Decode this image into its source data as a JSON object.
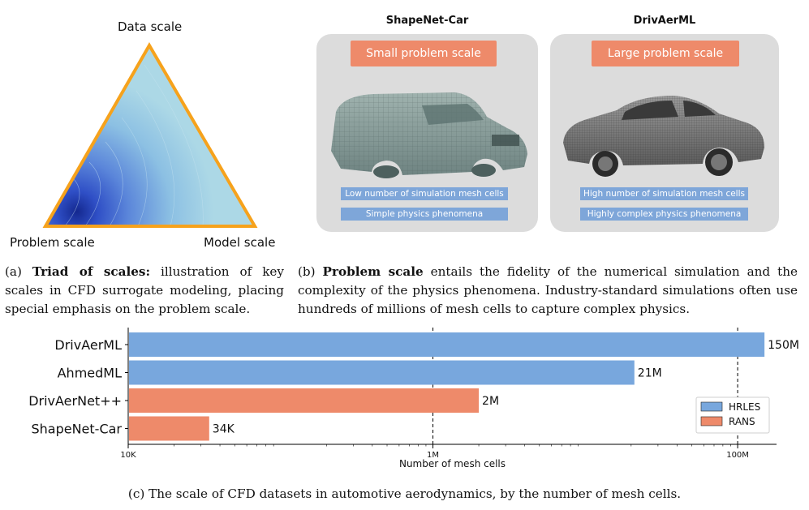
{
  "triad": {
    "top_label": "Data scale",
    "left_label": "Problem scale",
    "right_label": "Model scale"
  },
  "panels": [
    {
      "title": "ShapeNet-Car",
      "badge": "Small problem scale",
      "tags": [
        "Low number of simulation mesh cells",
        "Simple physics phenomena"
      ]
    },
    {
      "title": "DrivAerML",
      "badge": "Large problem scale",
      "tags": [
        "High number of simulation mesh cells",
        "Highly complex physics phenomena"
      ]
    }
  ],
  "captions": {
    "a_prefix": "(a) ",
    "a_bold": "Triad of scales:",
    "a_rest": " illustration of key scales in CFD surrogate modeling, placing special emphasis on the problem scale.",
    "b_prefix": "(b) ",
    "b_bold": "Problem scale",
    "b_rest": " entails the fidelity of the numerical simulation and the complexity of the physics phenomena. Industry-standard simulations often use hundreds of millions of mesh cells to capture complex physics.",
    "c": "(c) The scale of CFD datasets in automotive aerodynamics, by the number of mesh cells."
  },
  "colors": {
    "hrles": "#78a7dd",
    "rans": "#ee8a6a",
    "triangle_fill": "#acd8e6",
    "triangle_edge": "#f6a21c"
  },
  "chart_data": {
    "type": "bar",
    "orientation": "horizontal",
    "xscale": "log",
    "xlim": [
      10000,
      180000000
    ],
    "xlabel": "Number of mesh cells",
    "ylabel": "",
    "title": "",
    "grid": "dashed verticals at 10K, 1M, 100M",
    "xticks": [
      {
        "value": 10000,
        "label": "10K"
      },
      {
        "value": 1000000,
        "label": "1M"
      },
      {
        "value": 100000000,
        "label": "100M"
      }
    ],
    "categories": [
      "DrivAerML",
      "AhmedML",
      "DrivAerNet++",
      "ShapeNet-Car"
    ],
    "values": [
      150000000,
      21000000,
      2000000,
      34000
    ],
    "value_labels": [
      "150M",
      "21M",
      "2M",
      "34K"
    ],
    "series_of_bar": [
      "HRLES",
      "HRLES",
      "RANS",
      "RANS"
    ],
    "legend": {
      "placement": "right",
      "entries": [
        {
          "name": "HRLES",
          "color": "#78a7dd"
        },
        {
          "name": "RANS",
          "color": "#ee8a6a"
        }
      ]
    }
  }
}
